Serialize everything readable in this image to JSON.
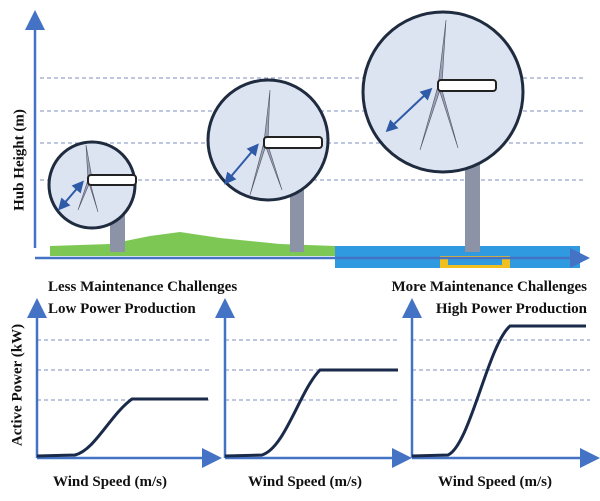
{
  "hub_height_label": "Hub Height (m)",
  "left_panel": {
    "line1": "Less Maintenance Challenges",
    "line2": "Low Power Production"
  },
  "right_panel": {
    "line1": "More Maintenance Challenges",
    "line2": "High Power Production"
  },
  "power_axis_label": "Active Power (kW)",
  "wind_speed_labels": [
    "Wind Speed (m/s)",
    "Wind Speed (m/s)",
    "Wind Speed (m/s)"
  ]
}
